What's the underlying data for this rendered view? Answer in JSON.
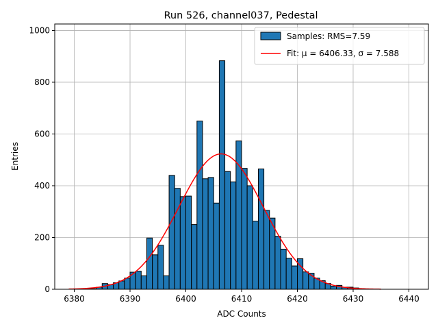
{
  "chart_data": {
    "type": "bar",
    "title": "Run 526, channel037, Pedestal",
    "xlabel": "ADC Counts",
    "ylabel": "Entries",
    "xlim": [
      6376.5,
      6443.5
    ],
    "ylim": [
      0,
      1025
    ],
    "x_ticks": [
      6380,
      6390,
      6400,
      6410,
      6420,
      6430,
      6440
    ],
    "y_ticks": [
      0,
      200,
      400,
      600,
      800,
      1000
    ],
    "grid": true,
    "legend_position": "top-right",
    "series": [
      {
        "name": "Samples: RMS=7.59",
        "kind": "histogram",
        "color": "#1f77b4",
        "edge_color": "#000000",
        "bins": [
          6379,
          6380,
          6381,
          6382,
          6383,
          6384,
          6385,
          6386,
          6387,
          6388,
          6389,
          6390,
          6391,
          6392,
          6393,
          6394,
          6395,
          6396,
          6397,
          6398,
          6399,
          6400,
          6401,
          6402,
          6403,
          6404,
          6405,
          6406,
          6407,
          6408,
          6409,
          6410,
          6411,
          6412,
          6413,
          6414,
          6415,
          6416,
          6417,
          6418,
          6419,
          6420,
          6421,
          6422,
          6423,
          6424,
          6425,
          6426,
          6427,
          6428,
          6429,
          6430,
          6431,
          6432,
          6433,
          6434,
          6435
        ],
        "values": [
          0,
          0,
          0,
          1,
          2,
          8,
          22,
          18,
          25,
          32,
          43,
          66,
          70,
          52,
          198,
          133,
          170,
          52,
          440,
          390,
          358,
          360,
          250,
          650,
          427,
          432,
          333,
          883,
          455,
          415,
          573,
          467,
          400,
          263,
          465,
          305,
          275,
          205,
          155,
          120,
          90,
          118,
          67,
          62,
          43,
          33,
          22,
          12,
          15,
          8,
          8,
          5,
          2,
          0,
          0,
          0,
          0
        ]
      },
      {
        "name": "Fit: μ = 6406.33, σ = 7.588",
        "kind": "line",
        "color": "#ff0000",
        "mu": 6406.33,
        "sigma": 7.588,
        "amplitude": 523,
        "x_range": [
          6379,
          6435
        ]
      }
    ]
  }
}
